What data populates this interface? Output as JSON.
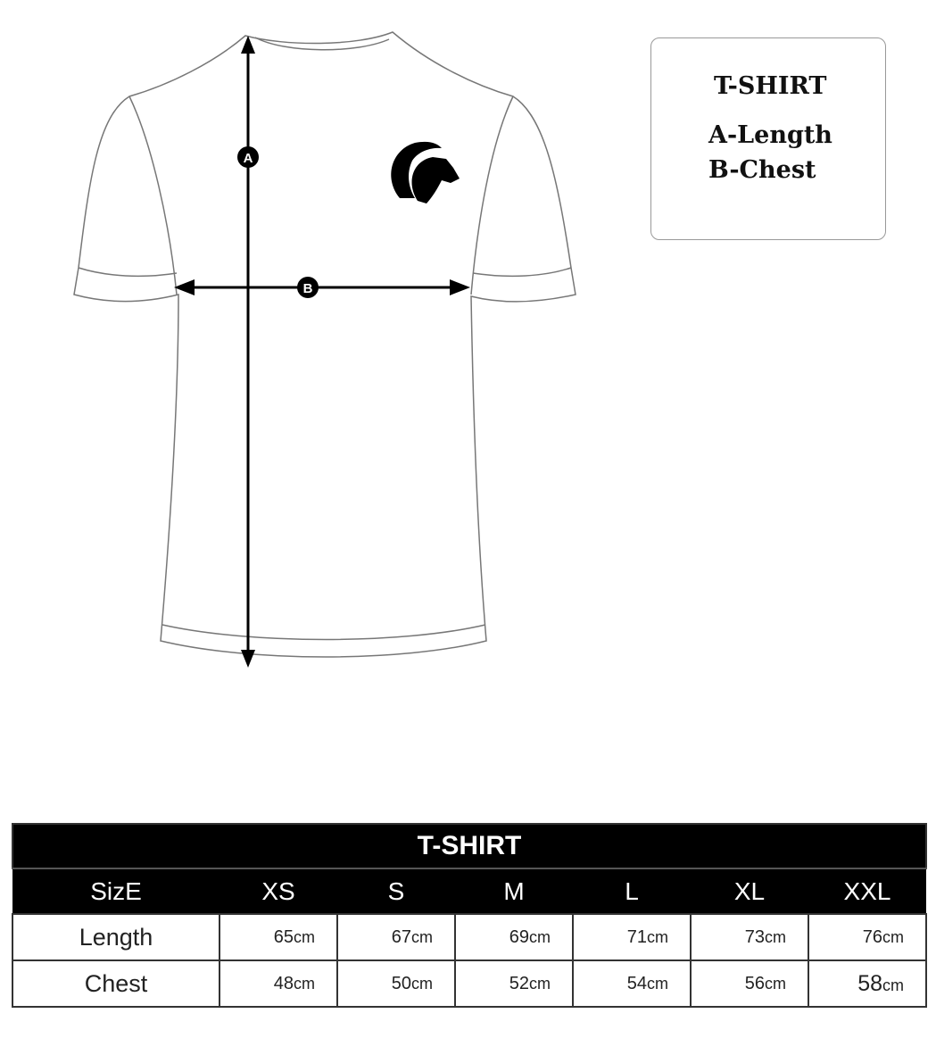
{
  "diagram": {
    "measure_a_marker": "A",
    "measure_b_marker": "B",
    "logo_icon": "ibex-head-logo"
  },
  "legend": {
    "title": "T-SHIRT",
    "a": "A-Length",
    "b": "B-Chest"
  },
  "table": {
    "title": "T-SHIRT",
    "size_label": "SizE",
    "sizes": [
      "XS",
      "S",
      "M",
      "L",
      "XL",
      "XXL"
    ],
    "unit": "cm",
    "rows": [
      {
        "label": "Length",
        "values": [
          "65",
          "67",
          "69",
          "71",
          "73",
          "76"
        ]
      },
      {
        "label": "Chest",
        "values": [
          "48",
          "50",
          "52",
          "54",
          "56",
          "58"
        ]
      }
    ]
  }
}
